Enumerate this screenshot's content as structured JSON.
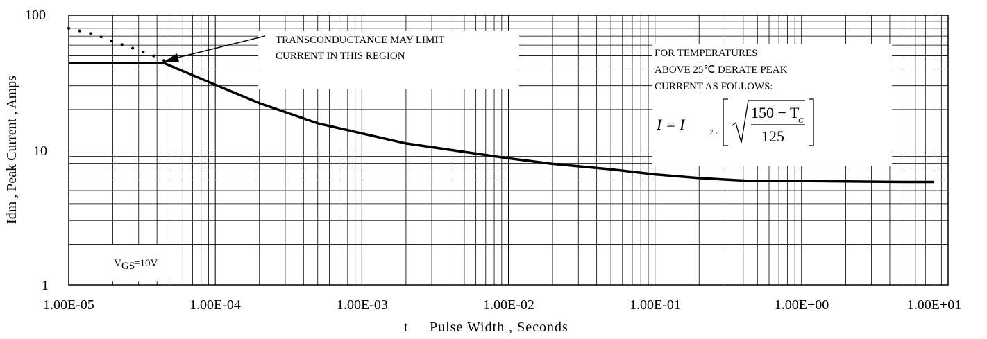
{
  "chart_data": {
    "type": "line",
    "title": "",
    "xlabel": "Pulse Width , Seconds",
    "xlabel_prefix": "t",
    "ylabel": "Idm , Peak Current , Amps",
    "x_scale": "log",
    "y_scale": "log",
    "xlim": [
      1e-05,
      10
    ],
    "ylim": [
      1,
      100
    ],
    "grid": true,
    "x_tick_labels": [
      "1.00E-05",
      "1.00E-04",
      "1.00E-03",
      "1.00E-02",
      "1.00E-01",
      "1.00E+00",
      "1.00E+01"
    ],
    "y_tick_labels": [
      "1",
      "10",
      "100"
    ],
    "series": [
      {
        "style": "solid",
        "x": [
          1e-05,
          4.5e-05,
          0.0001,
          0.0002,
          0.0005,
          0.001,
          0.002,
          0.005,
          0.01,
          0.02,
          0.05,
          0.1,
          0.2,
          0.45,
          1,
          2,
          5,
          8
        ],
        "y": [
          44,
          44,
          30.5,
          22.3,
          15.8,
          13.3,
          11.2,
          9.7,
          8.7,
          7.9,
          7.2,
          6.6,
          6.2,
          5.9,
          5.9,
          5.85,
          5.8,
          5.8
        ]
      },
      {
        "style": "dotted",
        "x": [
          1e-05,
          1.5e-05,
          2e-05,
          3e-05,
          4e-05,
          4.5e-05
        ],
        "y": [
          80,
          72,
          64,
          55,
          49,
          46
        ]
      }
    ],
    "annotations": {
      "transconductance_line1": "TRANSCONDUCTANCE MAY LIMIT",
      "transconductance_line2": "CURRENT IN THIS REGION",
      "derate_line1": "FOR TEMPERATURES",
      "derate_line2": "ABOVE 25℃ DERATE PEAK",
      "derate_line3": "CURRENT AS FOLLOWS:",
      "formula_lhs": "I = I",
      "formula_sub": "25",
      "formula_numerator": "150 − T",
      "formula_numerator_sub": "C",
      "formula_denominator": "125",
      "vgs_main": "V",
      "vgs_sub": "GS",
      "vgs_value": "=10V"
    }
  }
}
